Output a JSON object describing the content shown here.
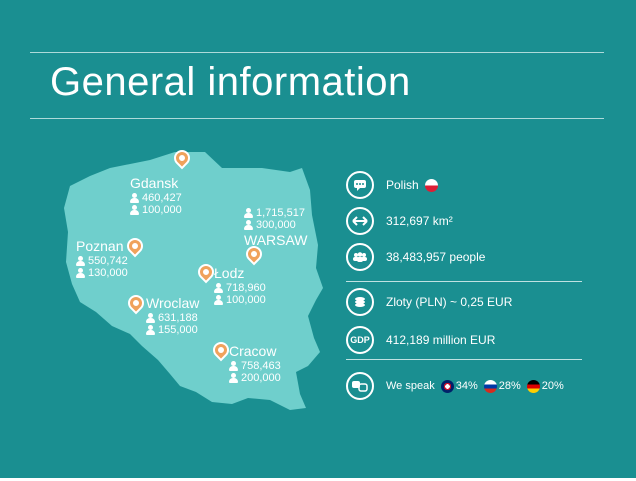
{
  "title": "General information",
  "cities": [
    {
      "name": "Gdansk",
      "pop": "460,427",
      "stat2": "100,000"
    },
    {
      "name": "WARSAW",
      "pop": "1,715,517",
      "stat2": "300,000"
    },
    {
      "name": "Poznan",
      "pop": "550,742",
      "stat2": "130,000"
    },
    {
      "name": "Łodz",
      "pop": "718,960",
      "stat2": "100,000"
    },
    {
      "name": "Wroclaw",
      "pop": "631,188",
      "stat2": "155,000"
    },
    {
      "name": "Cracow",
      "pop": "758,463",
      "stat2": "200,000"
    }
  ],
  "info": {
    "language": "Polish",
    "area": "312,697 km²",
    "population": "38,483,957 people",
    "currency": "Zloty (PLN) ~ 0,25 EUR",
    "gdp_icon": "GDP",
    "gdp": "412,189 million EUR",
    "speak_label": "We speak",
    "english": "34%",
    "russian": "28%",
    "german": "20%"
  },
  "icons": {
    "language": "speech-bubble-icon",
    "area": "double-arrow-icon",
    "population": "people-icon",
    "currency": "coins-icon",
    "gdp": "gdp-icon",
    "speak": "translate-icon"
  },
  "colors": {
    "background": "#1a8f91",
    "map": "#6fcfcc",
    "pin": "#f0a25c"
  }
}
